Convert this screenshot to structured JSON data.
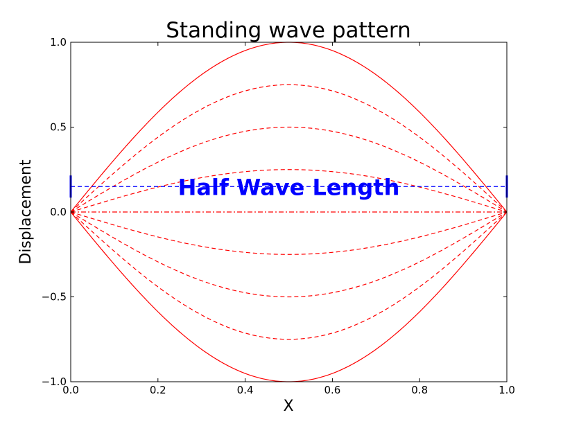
{
  "chart_data": {
    "type": "line",
    "title": "Standing wave pattern",
    "xlabel": "X",
    "ylabel": "Displacement",
    "xlim": [
      0.0,
      1.0
    ],
    "ylim": [
      -1.0,
      1.0
    ],
    "grid": false,
    "x_ticks": [
      {
        "value": 0.0,
        "label": "0.0"
      },
      {
        "value": 0.2,
        "label": "0.2"
      },
      {
        "value": 0.4,
        "label": "0.4"
      },
      {
        "value": 0.6,
        "label": "0.6"
      },
      {
        "value": 0.8,
        "label": "0.8"
      },
      {
        "value": 1.0,
        "label": "1.0"
      }
    ],
    "y_ticks": [
      {
        "value": 1.0,
        "label": "1.0"
      },
      {
        "value": 0.5,
        "label": "0.5"
      },
      {
        "value": 0.0,
        "label": "0.0"
      },
      {
        "value": -0.5,
        "label": "−0.5"
      },
      {
        "value": -1.0,
        "label": "−1.0"
      }
    ],
    "function": "amplitude * sin(pi * x)",
    "series": [
      {
        "amplitude": 1.0,
        "style": "solid",
        "color": "#ff0000"
      },
      {
        "amplitude": 0.75,
        "style": "dashed",
        "color": "#ff0000"
      },
      {
        "amplitude": 0.5,
        "style": "dashed",
        "color": "#ff0000"
      },
      {
        "amplitude": 0.25,
        "style": "dashed",
        "color": "#ff0000"
      },
      {
        "amplitude": 0.0,
        "style": "dashdot",
        "color": "#ff0000"
      },
      {
        "amplitude": -0.25,
        "style": "dashed",
        "color": "#ff0000"
      },
      {
        "amplitude": -0.5,
        "style": "dashed",
        "color": "#ff0000"
      },
      {
        "amplitude": -0.75,
        "style": "dashed",
        "color": "#ff0000"
      },
      {
        "amplitude": -1.0,
        "style": "solid",
        "color": "#ff0000"
      }
    ],
    "annotation": {
      "text": "Half Wave Length",
      "color": "#0000ff",
      "y": 0.15,
      "x_start": 0.0,
      "x_end": 1.0,
      "line_style": "dashed",
      "end_markers": "vertical-bars"
    }
  }
}
